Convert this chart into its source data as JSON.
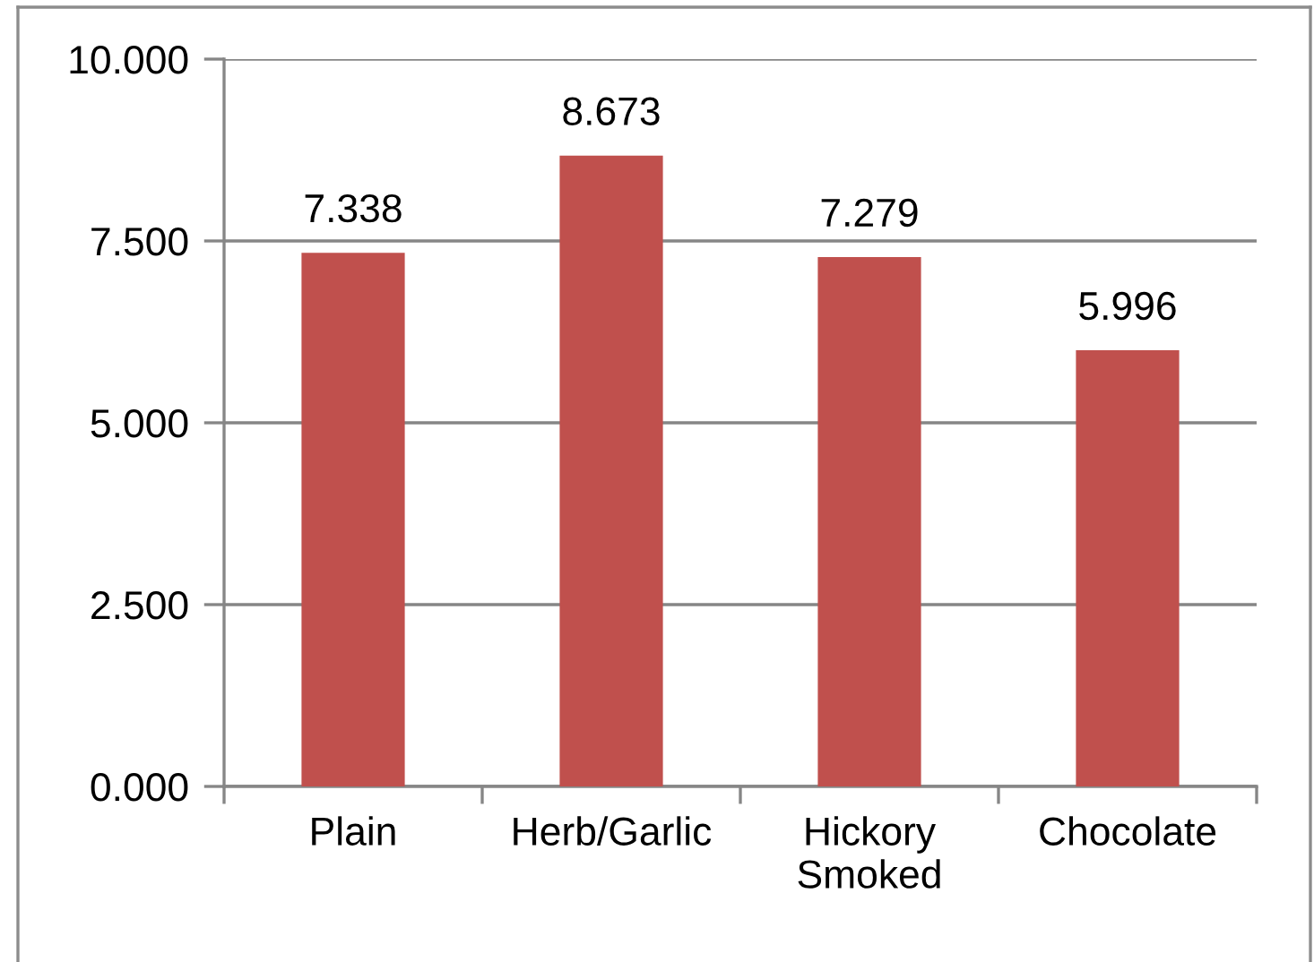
{
  "chart_data": {
    "type": "bar",
    "categories": [
      "Plain",
      "Herb/Garlic",
      "Hickory\nSmoked",
      "Chocolate"
    ],
    "values": [
      7.338,
      8.673,
      7.279,
      5.996
    ],
    "color": "#c0504d",
    "ylim": [
      0,
      10
    ],
    "yticks": [
      {
        "value": 0,
        "label": "0.000"
      },
      {
        "value": 2.5,
        "label": "2.500"
      },
      {
        "value": 5,
        "label": "5.000"
      },
      {
        "value": 7.5,
        "label": "7.500"
      },
      {
        "value": 10,
        "label": "10.000"
      }
    ],
    "grid": "y",
    "data_labels": true
  }
}
